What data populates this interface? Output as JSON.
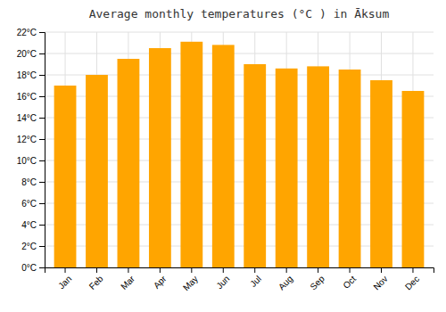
{
  "chart_data": {
    "type": "bar",
    "title": "Average monthly temperatures (°C ) in Āksum",
    "categories": [
      "Jan",
      "Feb",
      "Mar",
      "Apr",
      "May",
      "Jun",
      "Jul",
      "Aug",
      "Sep",
      "Oct",
      "Nov",
      "Dec"
    ],
    "values": [
      17.0,
      18.0,
      19.5,
      20.5,
      21.1,
      20.8,
      19.0,
      18.6,
      18.8,
      18.5,
      17.5,
      16.5
    ],
    "color": "#FFA500",
    "ylim": [
      0,
      22
    ],
    "yticks": [
      {
        "value": 0,
        "label": "0°C"
      },
      {
        "value": 2,
        "label": "2°C"
      },
      {
        "value": 4,
        "label": "4°C"
      },
      {
        "value": 6,
        "label": "6°C"
      },
      {
        "value": 8,
        "label": "8°C"
      },
      {
        "value": 10,
        "label": "10°C"
      },
      {
        "value": 12,
        "label": "12°C"
      },
      {
        "value": 14,
        "label": "14°C"
      },
      {
        "value": 16,
        "label": "16°C"
      },
      {
        "value": 18,
        "label": "18°C"
      },
      {
        "value": 20,
        "label": "20°C"
      },
      {
        "value": 22,
        "label": "22°C"
      }
    ],
    "grid": true
  }
}
